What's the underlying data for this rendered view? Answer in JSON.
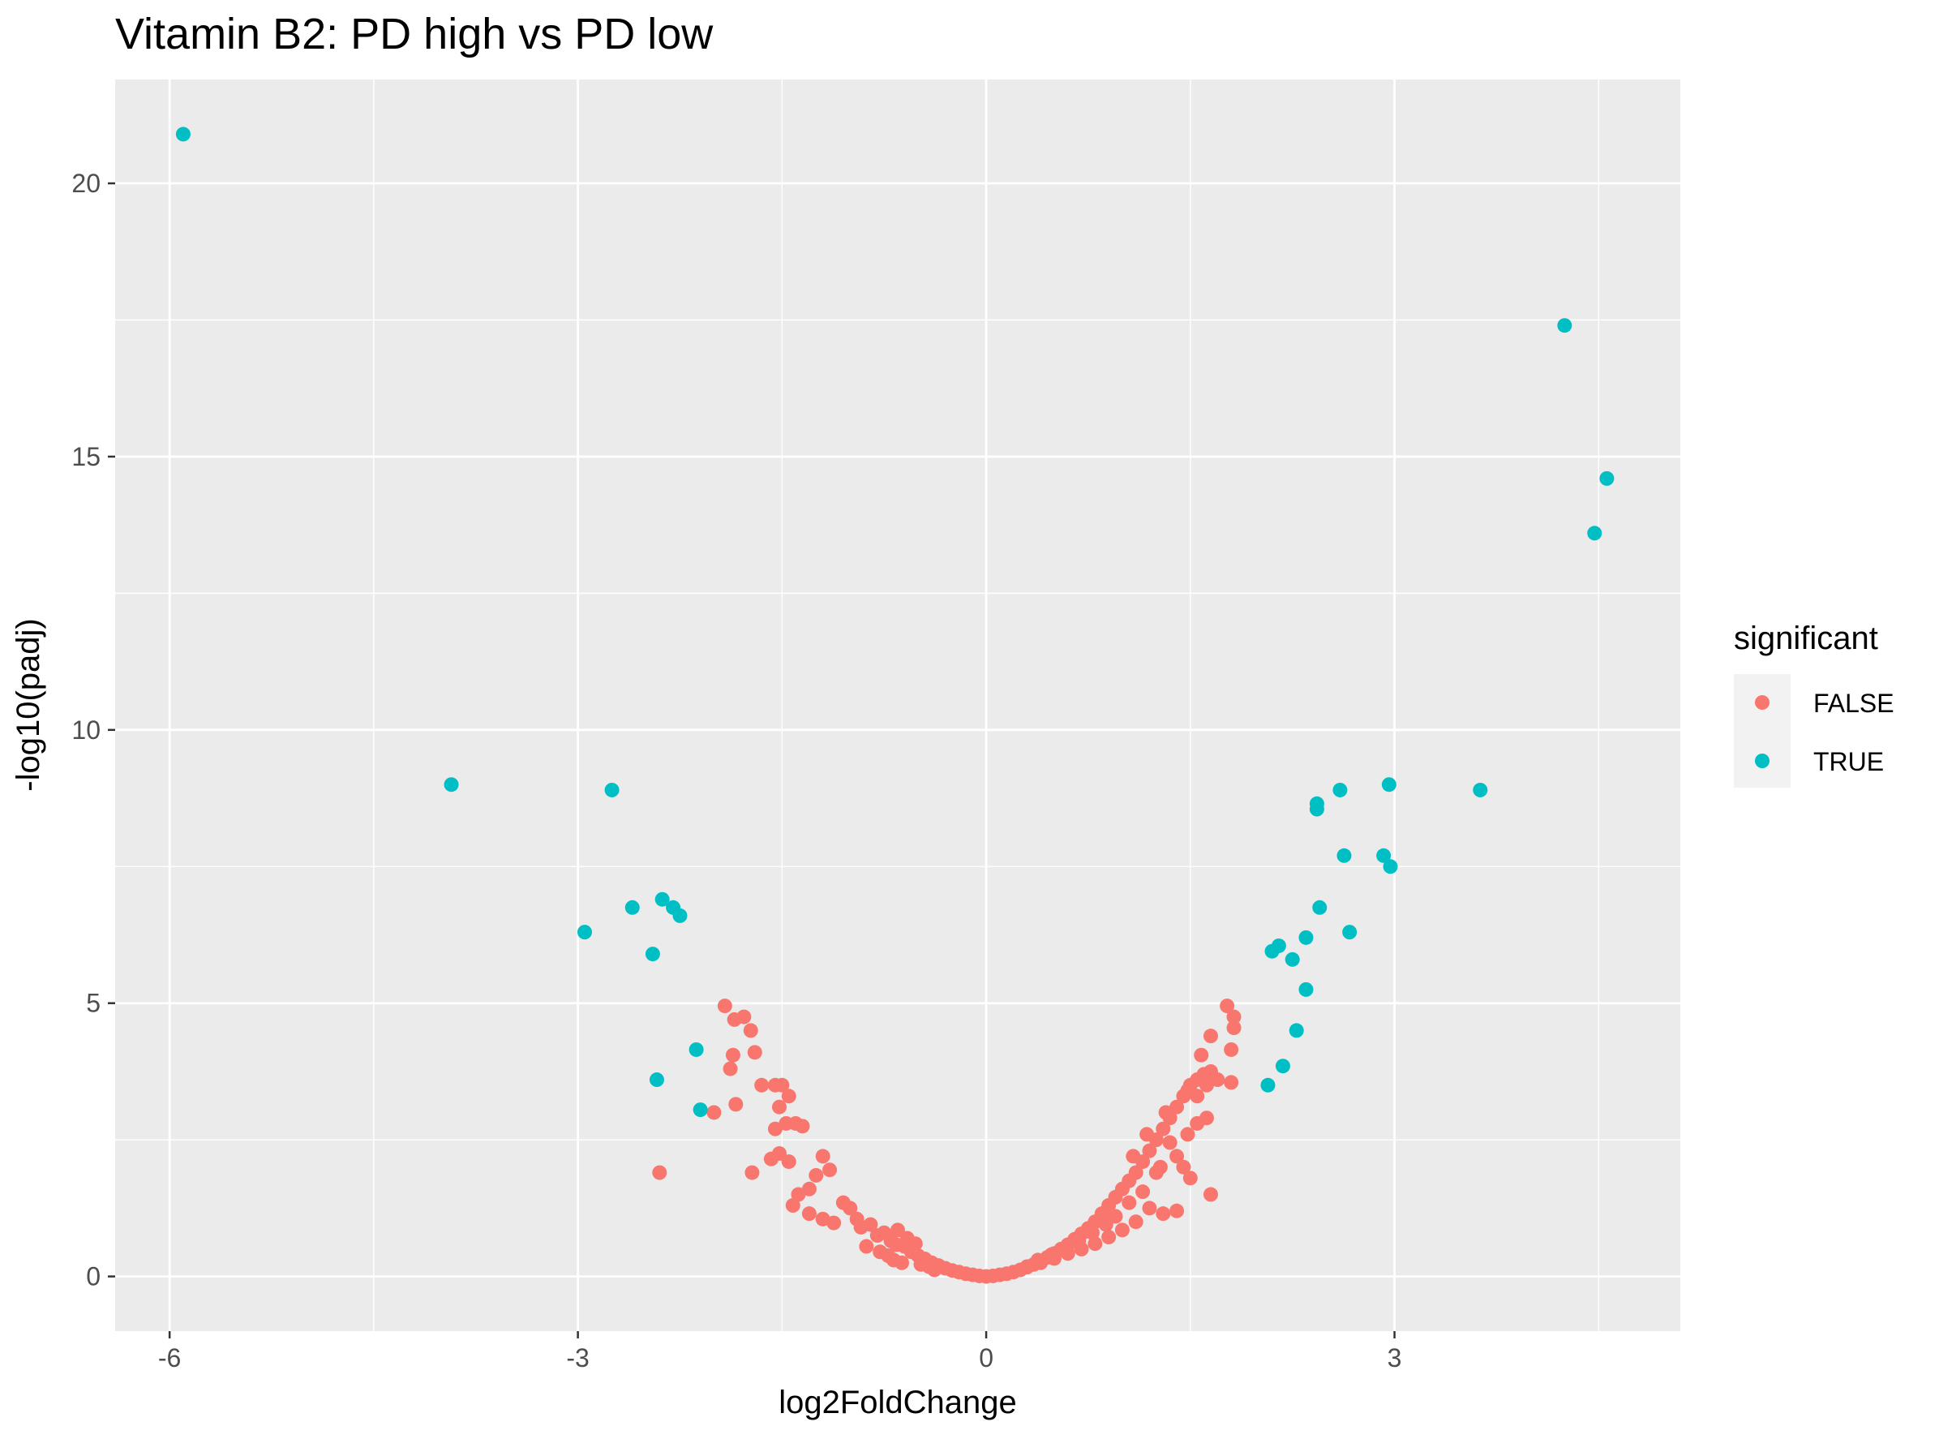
{
  "chart_data": {
    "type": "scatter",
    "title": "Vitamin B2: PD high vs PD low",
    "xlabel": "log2FoldChange",
    "ylabel": "-log10(padj)",
    "xlim": [
      -6.4,
      5.1
    ],
    "ylim": [
      -1.0,
      21.9
    ],
    "x_ticks": [
      -6,
      -3,
      0,
      3
    ],
    "y_ticks": [
      0,
      5,
      10,
      15,
      20
    ],
    "x_tick_labels": [
      "-6",
      "-3",
      "0",
      "3"
    ],
    "y_tick_labels": [
      "0",
      "5",
      "10",
      "15",
      "20"
    ],
    "grid": true,
    "legend": {
      "title": "significant",
      "position": "right"
    },
    "series": [
      {
        "name": "FALSE",
        "color": "#F8766D",
        "points": [
          [
            -1.92,
            4.95
          ],
          [
            -1.85,
            4.7
          ],
          [
            -1.78,
            4.75
          ],
          [
            -1.73,
            4.5
          ],
          [
            -1.88,
            3.8
          ],
          [
            -1.86,
            4.05
          ],
          [
            -1.7,
            4.1
          ],
          [
            -1.84,
            3.15
          ],
          [
            -2.0,
            3.0
          ],
          [
            -1.65,
            3.5
          ],
          [
            -1.55,
            3.5
          ],
          [
            -1.5,
            3.5
          ],
          [
            -1.45,
            3.3
          ],
          [
            -1.52,
            3.1
          ],
          [
            -1.47,
            2.8
          ],
          [
            -1.4,
            2.8
          ],
          [
            -1.35,
            2.75
          ],
          [
            -1.55,
            2.7
          ],
          [
            -1.52,
            2.25
          ],
          [
            -1.58,
            2.15
          ],
          [
            -1.45,
            2.1
          ],
          [
            -1.2,
            2.2
          ],
          [
            -1.72,
            1.9
          ],
          [
            -2.4,
            1.9
          ],
          [
            -1.25,
            1.85
          ],
          [
            -1.15,
            1.95
          ],
          [
            -1.3,
            1.6
          ],
          [
            -1.38,
            1.5
          ],
          [
            -1.42,
            1.3
          ],
          [
            -1.3,
            1.15
          ],
          [
            -1.2,
            1.05
          ],
          [
            -1.12,
            0.98
          ],
          [
            -1.05,
            1.35
          ],
          [
            -1.0,
            1.25
          ],
          [
            -0.95,
            1.05
          ],
          [
            -0.92,
            0.9
          ],
          [
            -0.85,
            0.95
          ],
          [
            -0.8,
            0.75
          ],
          [
            -0.75,
            0.8
          ],
          [
            -0.7,
            0.65
          ],
          [
            -0.66,
            0.58
          ],
          [
            -0.6,
            0.55
          ],
          [
            -0.55,
            0.45
          ],
          [
            -0.5,
            0.38
          ],
          [
            -0.45,
            0.32
          ],
          [
            -0.4,
            0.25
          ],
          [
            -0.35,
            0.2
          ],
          [
            -0.3,
            0.15
          ],
          [
            -0.25,
            0.11
          ],
          [
            -0.2,
            0.08
          ],
          [
            -0.15,
            0.05
          ],
          [
            -0.1,
            0.03
          ],
          [
            -0.05,
            0.01
          ],
          [
            0.0,
            0.0
          ],
          [
            -0.88,
            0.55
          ],
          [
            -0.78,
            0.45
          ],
          [
            -0.72,
            0.38
          ],
          [
            -0.65,
            0.85
          ],
          [
            -0.58,
            0.7
          ],
          [
            -0.52,
            0.6
          ],
          [
            -0.68,
            0.3
          ],
          [
            -0.62,
            0.25
          ],
          [
            -0.48,
            0.22
          ],
          [
            -0.42,
            0.18
          ],
          [
            -0.38,
            0.12
          ],
          [
            0.05,
            0.01
          ],
          [
            0.1,
            0.03
          ],
          [
            0.15,
            0.05
          ],
          [
            0.2,
            0.08
          ],
          [
            0.25,
            0.12
          ],
          [
            0.3,
            0.17
          ],
          [
            0.35,
            0.22
          ],
          [
            0.4,
            0.28
          ],
          [
            0.45,
            0.35
          ],
          [
            0.5,
            0.42
          ],
          [
            0.55,
            0.5
          ],
          [
            0.6,
            0.58
          ],
          [
            0.65,
            0.68
          ],
          [
            0.7,
            0.78
          ],
          [
            0.75,
            0.88
          ],
          [
            0.8,
            1.0
          ],
          [
            0.85,
            1.15
          ],
          [
            0.9,
            1.3
          ],
          [
            0.95,
            1.45
          ],
          [
            1.0,
            1.6
          ],
          [
            1.05,
            1.75
          ],
          [
            1.1,
            1.9
          ],
          [
            1.15,
            2.1
          ],
          [
            1.2,
            2.3
          ],
          [
            1.25,
            2.5
          ],
          [
            1.3,
            2.7
          ],
          [
            1.35,
            2.9
          ],
          [
            1.4,
            3.1
          ],
          [
            1.45,
            3.3
          ],
          [
            1.5,
            3.5
          ],
          [
            1.55,
            3.6
          ],
          [
            1.6,
            3.7
          ],
          [
            1.65,
            3.75
          ],
          [
            1.55,
            3.3
          ],
          [
            1.62,
            3.5
          ],
          [
            1.7,
            3.6
          ],
          [
            1.58,
            4.05
          ],
          [
            1.65,
            4.4
          ],
          [
            1.77,
            4.95
          ],
          [
            1.82,
            4.75
          ],
          [
            1.82,
            4.55
          ],
          [
            1.8,
            4.15
          ],
          [
            1.8,
            3.55
          ],
          [
            1.62,
            2.9
          ],
          [
            1.55,
            2.8
          ],
          [
            1.48,
            2.6
          ],
          [
            1.4,
            2.2
          ],
          [
            1.45,
            2.0
          ],
          [
            1.5,
            1.8
          ],
          [
            1.65,
            1.5
          ],
          [
            1.4,
            1.2
          ],
          [
            1.3,
            1.15
          ],
          [
            1.2,
            1.25
          ],
          [
            1.1,
            1.0
          ],
          [
            1.0,
            0.85
          ],
          [
            0.9,
            0.72
          ],
          [
            0.8,
            0.6
          ],
          [
            0.7,
            0.5
          ],
          [
            0.6,
            0.42
          ],
          [
            0.5,
            0.33
          ],
          [
            0.4,
            0.25
          ],
          [
            0.3,
            0.18
          ],
          [
            1.25,
            1.9
          ],
          [
            1.15,
            1.55
          ],
          [
            1.05,
            1.35
          ],
          [
            0.95,
            1.1
          ],
          [
            1.35,
            2.45
          ],
          [
            1.28,
            2.0
          ],
          [
            1.18,
            2.6
          ],
          [
            1.08,
            2.2
          ],
          [
            1.32,
            3.0
          ],
          [
            1.48,
            3.4
          ],
          [
            0.88,
            0.95
          ],
          [
            0.78,
            0.8
          ],
          [
            0.68,
            0.65
          ],
          [
            0.58,
            0.52
          ],
          [
            0.48,
            0.4
          ],
          [
            0.38,
            0.3
          ]
        ]
      },
      {
        "name": "TRUE",
        "color": "#00BFC4",
        "points": [
          [
            -5.9,
            20.9
          ],
          [
            -3.93,
            9.0
          ],
          [
            -2.75,
            8.9
          ],
          [
            -2.95,
            6.3
          ],
          [
            -2.6,
            6.75
          ],
          [
            -2.38,
            6.9
          ],
          [
            -2.3,
            6.75
          ],
          [
            -2.25,
            6.6
          ],
          [
            -2.45,
            5.9
          ],
          [
            -2.42,
            3.6
          ],
          [
            -2.13,
            4.15
          ],
          [
            -2.1,
            3.05
          ],
          [
            2.07,
            3.5
          ],
          [
            2.18,
            3.85
          ],
          [
            2.28,
            4.5
          ],
          [
            2.35,
            5.25
          ],
          [
            2.25,
            5.8
          ],
          [
            2.1,
            5.95
          ],
          [
            2.15,
            6.05
          ],
          [
            2.35,
            6.2
          ],
          [
            2.45,
            6.75
          ],
          [
            2.67,
            6.3
          ],
          [
            2.63,
            7.7
          ],
          [
            2.43,
            8.55
          ],
          [
            2.43,
            8.65
          ],
          [
            2.6,
            8.9
          ],
          [
            2.92,
            7.7
          ],
          [
            2.97,
            7.5
          ],
          [
            2.96,
            9.0
          ],
          [
            3.63,
            8.9
          ],
          [
            4.25,
            17.4
          ],
          [
            4.47,
            13.6
          ],
          [
            4.56,
            14.6
          ]
        ]
      }
    ]
  }
}
